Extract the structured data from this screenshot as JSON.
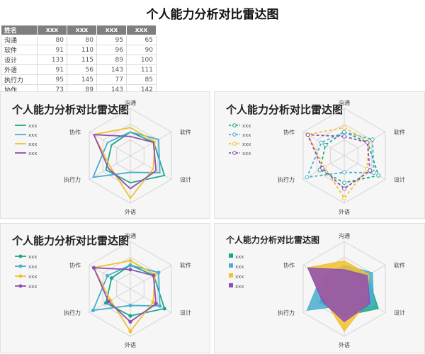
{
  "page": {
    "title": "个人能力分析对比雷达图"
  },
  "table": {
    "header_name": "姓名",
    "columns": [
      "xxx",
      "xxx",
      "xxx",
      "xxx"
    ],
    "rows": [
      {
        "name": "沟通",
        "values": [
          80,
          80,
          95,
          65
        ]
      },
      {
        "name": "软件",
        "values": [
          91,
          110,
          96,
          90
        ]
      },
      {
        "name": "设计",
        "values": [
          133,
          115,
          89,
          100
        ]
      },
      {
        "name": "外语",
        "values": [
          91,
          56,
          143,
          111
        ]
      },
      {
        "name": "执行力",
        "values": [
          95,
          145,
          77,
          85
        ]
      },
      {
        "name": "协作",
        "values": [
          73,
          89,
          143,
          142
        ]
      }
    ]
  },
  "colors": [
    "#1aa88a",
    "#4aaed0",
    "#f2c12e",
    "#8e4fb3"
  ],
  "chart_data": [
    {
      "type": "radar",
      "variant": "lines",
      "title": "个人能力分析对比雷达图",
      "axes": [
        "沟通",
        "软件",
        "设计",
        "外语",
        "执行力",
        "协作"
      ],
      "rmax": 160,
      "legend_position": "left",
      "series": [
        {
          "name": "xxx",
          "values": [
            80,
            91,
            133,
            91,
            95,
            73
          ]
        },
        {
          "name": "xxx",
          "values": [
            80,
            110,
            115,
            56,
            145,
            89
          ]
        },
        {
          "name": "xxx",
          "values": [
            95,
            96,
            89,
            143,
            77,
            143
          ]
        },
        {
          "name": "xxx",
          "values": [
            65,
            90,
            100,
            111,
            85,
            142
          ]
        }
      ]
    },
    {
      "type": "radar",
      "variant": "dashed-markers",
      "title": "个人能力分析对比雷达图",
      "axes": [
        "沟通",
        "软件",
        "设计",
        "外语",
        "执行力",
        "协作"
      ],
      "rmax": 160,
      "legend_position": "left",
      "series": [
        {
          "name": "xxx",
          "values": [
            80,
            91,
            133,
            91,
            95,
            73
          ]
        },
        {
          "name": "xxx",
          "values": [
            80,
            110,
            115,
            56,
            145,
            89
          ]
        },
        {
          "name": "xxx",
          "values": [
            95,
            96,
            89,
            143,
            77,
            143
          ]
        },
        {
          "name": "xxx",
          "values": [
            65,
            90,
            100,
            111,
            85,
            142
          ]
        }
      ]
    },
    {
      "type": "radar",
      "variant": "markers",
      "title": "个人能力分析对比雷达图",
      "axes": [
        "沟通",
        "软件",
        "设计",
        "外语",
        "执行力",
        "协作"
      ],
      "rmax": 160,
      "legend_position": "left",
      "series": [
        {
          "name": "xxx",
          "values": [
            80,
            91,
            133,
            91,
            95,
            73
          ]
        },
        {
          "name": "xxx",
          "values": [
            80,
            110,
            115,
            56,
            145,
            89
          ]
        },
        {
          "name": "xxx",
          "values": [
            95,
            96,
            89,
            143,
            77,
            143
          ]
        },
        {
          "name": "xxx",
          "values": [
            65,
            90,
            100,
            111,
            85,
            142
          ]
        }
      ]
    },
    {
      "type": "radar",
      "variant": "filled",
      "title": "个人能力分析对比雷达图",
      "axes": [
        "沟通",
        "软件",
        "设计",
        "外语",
        "执行力",
        "协作"
      ],
      "rmax": 160,
      "legend_position": "left",
      "series": [
        {
          "name": "xxx",
          "values": [
            80,
            91,
            133,
            91,
            95,
            73
          ]
        },
        {
          "name": "xxx",
          "values": [
            80,
            110,
            115,
            56,
            145,
            89
          ]
        },
        {
          "name": "xxx",
          "values": [
            95,
            96,
            89,
            143,
            77,
            143
          ]
        },
        {
          "name": "xxx",
          "values": [
            65,
            90,
            100,
            111,
            85,
            142
          ]
        }
      ]
    }
  ]
}
